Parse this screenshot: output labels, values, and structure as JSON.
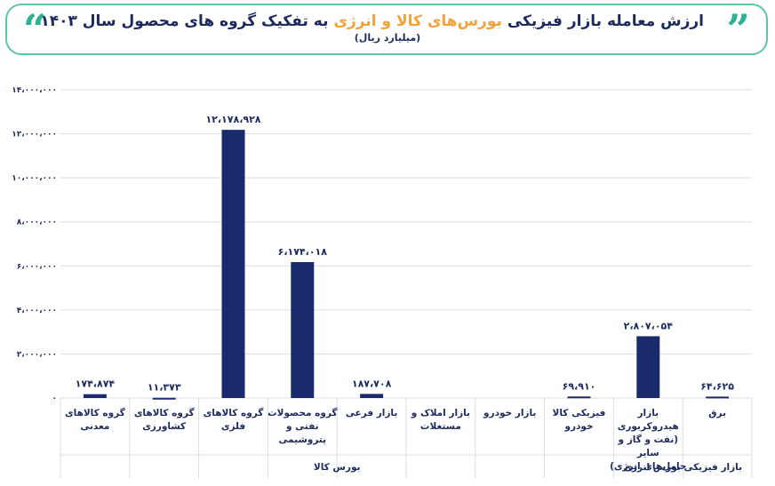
{
  "header": {
    "title_part1": "ارزش معامله",
    "title_part2": "بازار فیزیکی",
    "title_part3": "بورس‌های کالا و انرژی",
    "title_part4": "به تفکیک گروه های محصول سال ۱۴۰۳",
    "subtitle": "(میلیارد ریال)",
    "quote_left": "“",
    "quote_right": "”"
  },
  "colors": {
    "bar": "#1a2b6d",
    "accent": "#f2a23a",
    "frame": "#5fc3a8",
    "text": "#1c2a5e"
  },
  "chart_data": {
    "type": "bar",
    "title": "ارزش معامله بازار فیزیکی بورس‌های کالا و انرژی به تفکیک گروه های محصول سال ۱۴۰۳",
    "ylabel": "(میلیارد ریال)",
    "ylim": [
      0,
      14000000
    ],
    "yticks": [
      0,
      2000000,
      4000000,
      6000000,
      8000000,
      10000000,
      12000000,
      14000000
    ],
    "ytick_labels": [
      "۰",
      "۲،۰۰۰،۰۰۰",
      "۴،۰۰۰،۰۰۰",
      "۶،۰۰۰،۰۰۰",
      "۸،۰۰۰،۰۰۰",
      "۱۰،۰۰۰،۰۰۰",
      "۱۲،۰۰۰،۰۰۰",
      "۱۴،۰۰۰،۰۰۰"
    ],
    "grid": true,
    "categories": [
      [
        "گروه کالاهای",
        "معدنی"
      ],
      [
        "گروه کالاهای",
        "کشاورزی"
      ],
      [
        "گروه کالاهای فلزی"
      ],
      [
        "گروه محصولات",
        "نفتی و پتروشیمی"
      ],
      [
        "بازار فرعی"
      ],
      [
        "بازار املاک و",
        "مستغلات"
      ],
      [
        "بازار خودرو"
      ],
      [
        "فیزیکی کالا خودرو"
      ],
      [
        "بازار هیدروکربوری",
        "(نفت و گاز و سایر",
        "حامل‌های انرژی)"
      ],
      [
        "برق"
      ]
    ],
    "values": [
      174874,
      11373,
      12178928,
      6174018,
      187708,
      null,
      null,
      69910,
      2807054,
      64625
    ],
    "data_labels": [
      "۱۷۴،۸۷۴",
      "۱۱،۳۷۳",
      "۱۲،۱۷۸،۹۲۸",
      "۶،۱۷۴،۰۱۸",
      "۱۸۷،۷۰۸",
      "",
      "",
      "۶۹،۹۱۰",
      "۲،۸۰۷،۰۵۴",
      "۶۴،۶۲۵"
    ],
    "groups": [
      {
        "name": "بورس کالا",
        "from": 0,
        "to": 7
      },
      {
        "name": "بازار فیزیکی بورس انرژی",
        "from": 8,
        "to": 9
      }
    ]
  }
}
